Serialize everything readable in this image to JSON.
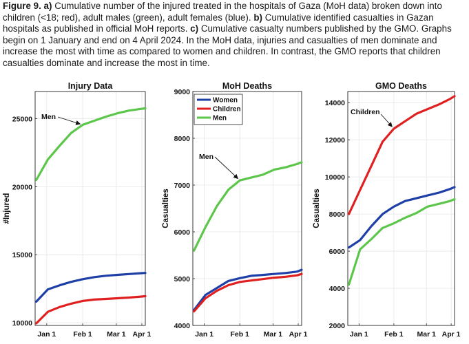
{
  "caption": {
    "figure_label": "Figure 9.",
    "part_a_label": "a)",
    "part_a_text": " Cumulative number of the injured treated in the hospitals of Gaza (MoH data) broken down into children (<18; red), adult males (green), adult females (blue). ",
    "part_b_label": "b)",
    "part_b_text": " Cumulative identified casualties in Gazan hospitals as published in official MoH reports. ",
    "part_c_label": "c)",
    "part_c_text": " Cumulative casualty numbers published by the GMO. Graphs begin on 1 January and end on 4 April 2024. In the MoH data, injuries and casualties of men dominate and increase the most with time as compared to women and children. In contrast, the GMO reports that children casualties dominate and increase the most in time."
  },
  "colors": {
    "women": "#1f3fa8",
    "children": "#e02020",
    "men": "#5cc64a"
  },
  "chart_data": [
    {
      "type": "line",
      "title": "Injury Data",
      "ylabel": "#Injured",
      "ylim": [
        9800,
        27000
      ],
      "yticks": [
        10000,
        15000,
        20000,
        25000
      ],
      "xlim": [
        -1,
        94
      ],
      "xticks": [
        {
          "label": "Jan 1",
          "day": 9
        },
        {
          "label": "Feb 1",
          "day": 40
        },
        {
          "label": "Mar 1",
          "day": 69
        },
        {
          "label": "Apr 1",
          "day": 91
        }
      ],
      "grid": true,
      "legend": "none",
      "annotation": {
        "text": "Men",
        "series": "Men",
        "day": 40
      },
      "series": [
        {
          "key": "men",
          "x": [
            0,
            10,
            20,
            30,
            40,
            50,
            60,
            70,
            80,
            90,
            94
          ],
          "y": [
            20500,
            22000,
            23000,
            23950,
            24550,
            24850,
            25150,
            25400,
            25600,
            25720,
            25760
          ]
        },
        {
          "key": "women",
          "x": [
            0,
            10,
            20,
            30,
            40,
            50,
            60,
            70,
            80,
            90,
            94
          ],
          "y": [
            11550,
            12450,
            12750,
            13000,
            13200,
            13350,
            13450,
            13520,
            13580,
            13640,
            13660
          ]
        },
        {
          "key": "children",
          "x": [
            0,
            10,
            20,
            30,
            40,
            50,
            60,
            70,
            80,
            90,
            94
          ],
          "y": [
            9950,
            10800,
            11150,
            11400,
            11600,
            11700,
            11750,
            11800,
            11850,
            11920,
            11950
          ]
        }
      ]
    },
    {
      "type": "line",
      "title": "MoH Deaths",
      "ylabel": "Casualties",
      "ylim": [
        4000,
        9000
      ],
      "yticks": [
        4000,
        5000,
        6000,
        7000,
        8000,
        9000
      ],
      "xlim": [
        -1,
        94
      ],
      "xticks": [
        {
          "label": "Jan 1",
          "day": 9
        },
        {
          "label": "Feb 1",
          "day": 40
        },
        {
          "label": "Mar 1",
          "day": 69
        },
        {
          "label": "Apr 1",
          "day": 91
        }
      ],
      "grid": true,
      "legend": "top-left",
      "annotation": {
        "text": "Men",
        "series": "Men",
        "day": 40
      },
      "series": [
        {
          "key": "women",
          "name": "Women",
          "x": [
            0,
            10,
            20,
            30,
            40,
            50,
            60,
            70,
            80,
            90,
            94
          ],
          "y": [
            4330,
            4650,
            4800,
            4950,
            5010,
            5060,
            5080,
            5100,
            5120,
            5150,
            5190
          ]
        },
        {
          "key": "children",
          "name": "Children",
          "x": [
            0,
            10,
            20,
            30,
            40,
            50,
            60,
            70,
            80,
            90,
            94
          ],
          "y": [
            4300,
            4580,
            4740,
            4860,
            4930,
            4960,
            4990,
            5020,
            5040,
            5070,
            5100
          ]
        },
        {
          "key": "men",
          "name": "Men",
          "x": [
            0,
            10,
            20,
            30,
            40,
            50,
            60,
            70,
            80,
            90,
            94
          ],
          "y": [
            5600,
            6100,
            6550,
            6900,
            7100,
            7160,
            7220,
            7330,
            7380,
            7450,
            7490
          ]
        }
      ]
    },
    {
      "type": "line",
      "title": "GMO Deaths",
      "ylabel": "Casualties",
      "ylim": [
        2000,
        14600
      ],
      "yticks": [
        2000,
        4000,
        6000,
        8000,
        10000,
        12000,
        14000
      ],
      "xlim": [
        -1,
        94
      ],
      "xticks": [
        {
          "label": "Jan 1",
          "day": 9
        },
        {
          "label": "Feb 1",
          "day": 40
        },
        {
          "label": "Mar 1",
          "day": 69
        },
        {
          "label": "Apr 1",
          "day": 91
        }
      ],
      "grid": true,
      "legend": "none",
      "annotation": {
        "text": "Children",
        "series": "Children",
        "day": 40
      },
      "series": [
        {
          "key": "children",
          "x": [
            0,
            10,
            20,
            30,
            40,
            50,
            60,
            70,
            80,
            90,
            94
          ],
          "y": [
            8000,
            9300,
            10600,
            11900,
            12600,
            13000,
            13400,
            13650,
            13900,
            14200,
            14350
          ]
        },
        {
          "key": "women",
          "x": [
            0,
            10,
            20,
            30,
            40,
            50,
            60,
            70,
            80,
            90,
            94
          ],
          "y": [
            6200,
            6600,
            7350,
            8000,
            8400,
            8700,
            8850,
            9000,
            9150,
            9350,
            9450
          ]
        },
        {
          "key": "men",
          "x": [
            0,
            10,
            20,
            30,
            40,
            50,
            60,
            70,
            80,
            90,
            94
          ],
          "y": [
            4200,
            6100,
            6650,
            7250,
            7500,
            7800,
            8050,
            8400,
            8550,
            8700,
            8800
          ]
        }
      ]
    }
  ]
}
